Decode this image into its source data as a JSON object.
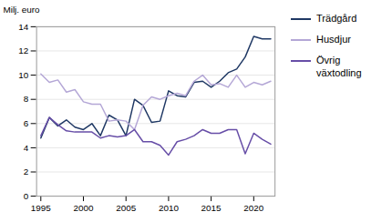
{
  "chart_data": {
    "type": "line",
    "x": [
      1995,
      1996,
      1997,
      1998,
      1999,
      2000,
      2001,
      2002,
      2003,
      2004,
      2005,
      2006,
      2007,
      2008,
      2009,
      2010,
      2011,
      2012,
      2013,
      2014,
      2015,
      2016,
      2017,
      2018,
      2019,
      2020,
      2021,
      2022
    ],
    "series": [
      {
        "name": "Trädgård",
        "color": "#1f3864",
        "values": [
          4.8,
          6.5,
          5.8,
          6.3,
          5.7,
          5.5,
          6.0,
          5.0,
          6.7,
          6.3,
          5.0,
          8.0,
          7.5,
          6.1,
          6.2,
          8.7,
          8.3,
          8.2,
          9.4,
          9.5,
          9.0,
          9.5,
          10.2,
          10.5,
          11.5,
          13.2,
          13.0,
          13.0
        ]
      },
      {
        "name": "Husdjur",
        "color": "#b4a7d6",
        "values": [
          10.1,
          9.4,
          9.6,
          8.6,
          8.8,
          7.8,
          7.6,
          7.6,
          6.2,
          6.3,
          6.2,
          5.5,
          7.5,
          8.2,
          8.0,
          8.3,
          8.5,
          8.3,
          9.5,
          10.0,
          9.2,
          9.3,
          9.0,
          10.0,
          9.0,
          9.4,
          9.2,
          9.5
        ]
      },
      {
        "name": "Övrig\nväxtodling",
        "color": "#674ea7",
        "values": [
          5.0,
          6.5,
          5.9,
          5.4,
          5.3,
          5.3,
          5.3,
          4.8,
          5.0,
          4.9,
          5.0,
          5.5,
          4.5,
          4.5,
          4.2,
          3.4,
          4.5,
          4.7,
          5.0,
          5.5,
          5.2,
          5.2,
          5.5,
          5.5,
          3.5,
          5.2,
          4.7,
          4.3
        ]
      }
    ],
    "ylabel": "Milj. euro",
    "xlim": [
      1994.5,
      2022.5
    ],
    "xticks": [
      1995,
      2000,
      2005,
      2010,
      2015,
      2020
    ],
    "ylim": [
      0,
      14
    ],
    "yticks": [
      0,
      2,
      4,
      6,
      8,
      10,
      12,
      14
    ],
    "grid": true,
    "legend": "right"
  }
}
